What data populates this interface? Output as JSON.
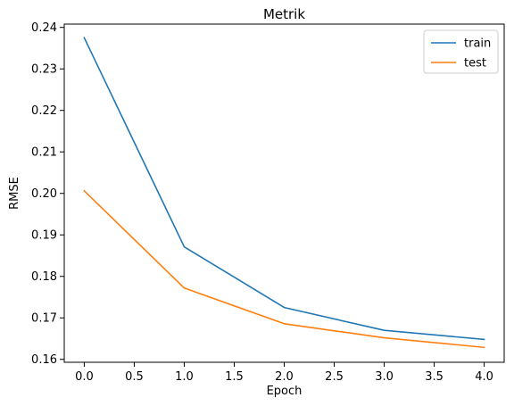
{
  "chart_data": {
    "type": "line",
    "title": "Metrik",
    "xlabel": "Epoch",
    "ylabel": "RMSE",
    "x": [
      0,
      1,
      2,
      3,
      4
    ],
    "xlim": [
      -0.2,
      4.2
    ],
    "ylim": [
      0.1593,
      0.2408
    ],
    "xticks": [
      "0.0",
      "0.5",
      "1.0",
      "1.5",
      "2.0",
      "2.5",
      "3.0",
      "3.5",
      "4.0"
    ],
    "yticks": [
      "0.16",
      "0.17",
      "0.18",
      "0.19",
      "0.20",
      "0.21",
      "0.22",
      "0.23",
      "0.24"
    ],
    "grid": false,
    "legend": "top-right",
    "series": [
      {
        "name": "train",
        "color": "#1f77b4",
        "values": [
          0.2375,
          0.1871,
          0.1725,
          0.167,
          0.1648
        ]
      },
      {
        "name": "test",
        "color": "#ff7f0e",
        "values": [
          0.2006,
          0.1772,
          0.1686,
          0.1652,
          0.1629
        ]
      }
    ]
  }
}
